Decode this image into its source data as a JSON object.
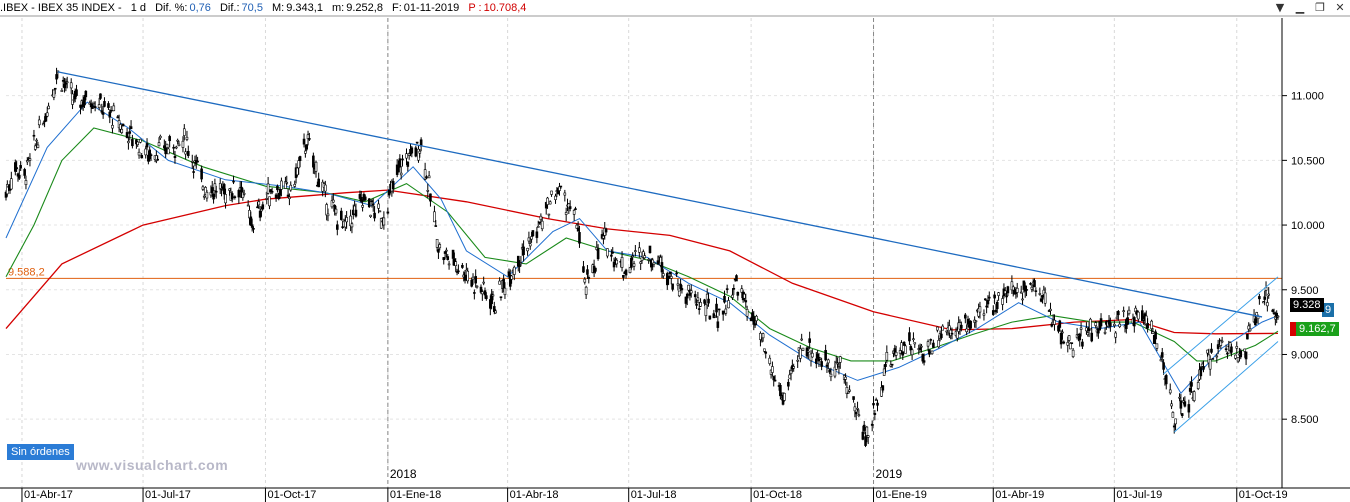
{
  "header": {
    "symbol": ".IBEX - IBEX 35 INDEX -",
    "period": "1 d",
    "dif_pct_label": "Dif. %:",
    "dif_pct_value": "0,76",
    "dif_label": "Dif.:",
    "dif_value": "70,5",
    "max_label": "M:",
    "max_value": "9.343,1",
    "min_label": "m:",
    "min_value": "9.252,8",
    "date_label": "F:",
    "date_value": "01-11-2019",
    "price_label": "P :",
    "price_value": "10.708,4"
  },
  "status_badge": "Sin órdenes",
  "watermark": "www.visualchart.com",
  "tags": {
    "last_price": "9.328",
    "ma_value": "9.162,7",
    "hidden_right": "9"
  },
  "colors": {
    "price": "#000000",
    "ma_fast": "#1f6fd0",
    "ma_mid": "#1a8a1a",
    "ma_slow": "#d40000",
    "resistance": "#e06010",
    "trend_line": "#1e6bc0",
    "channel": "#3aa0e8",
    "last_price_bg": "#000000",
    "ma_tag_bg": "#1aa01a"
  },
  "chart_data": {
    "type": "candlestick",
    "title": "IBEX 35 INDEX",
    "ylim": [
      8200,
      11600
    ],
    "y_ticks": [
      "11.000",
      "10.500",
      "10.000",
      "9.500",
      "9.000",
      "8.500"
    ],
    "x_ticks": [
      "01-Abr-17",
      "01-Jul-17",
      "01-Oct-17",
      "01-Ene-18",
      "01-Abr-18",
      "01-Jul-18",
      "01-Oct-18",
      "01-Ene-19",
      "01-Abr-19",
      "01-Jul-19",
      "01-Oct-19"
    ],
    "year_markers": [
      "2018",
      "2019"
    ],
    "horizontal_line": {
      "label": "9.588,2",
      "value": 9588.2
    },
    "price_path": [
      [
        "2017-03-20",
        10250
      ],
      [
        "2017-03-27",
        10450
      ],
      [
        "2017-04-03",
        10380
      ],
      [
        "2017-04-17",
        10800
      ],
      [
        "2017-04-28",
        11184
      ],
      [
        "2017-05-10",
        10960
      ],
      [
        "2017-05-24",
        10980
      ],
      [
        "2017-06-07",
        10850
      ],
      [
        "2017-06-21",
        10700
      ],
      [
        "2017-07-05",
        10550
      ],
      [
        "2017-07-19",
        10600
      ],
      [
        "2017-08-02",
        10650
      ],
      [
        "2017-08-16",
        10300
      ],
      [
        "2017-08-30",
        10250
      ],
      [
        "2017-09-13",
        10300
      ],
      [
        "2017-09-20",
        10000
      ],
      [
        "2017-10-06",
        10280
      ],
      [
        "2017-10-20",
        10250
      ],
      [
        "2017-11-01",
        10650
      ],
      [
        "2017-11-15",
        10200
      ],
      [
        "2017-11-30",
        9980
      ],
      [
        "2017-12-14",
        10200
      ],
      [
        "2017-12-28",
        10050
      ],
      [
        "2018-01-10",
        10450
      ],
      [
        "2018-01-26",
        10630
      ],
      [
        "2018-02-09",
        9800
      ],
      [
        "2018-02-23",
        9700
      ],
      [
        "2018-03-07",
        9560
      ],
      [
        "2018-03-23",
        9400
      ],
      [
        "2018-04-06",
        9700
      ],
      [
        "2018-04-20",
        9900
      ],
      [
        "2018-05-09",
        10280
      ],
      [
        "2018-05-24",
        10000
      ],
      [
        "2018-05-29",
        9500
      ],
      [
        "2018-06-12",
        9900
      ],
      [
        "2018-06-28",
        9650
      ],
      [
        "2018-07-12",
        9800
      ],
      [
        "2018-07-26",
        9700
      ],
      [
        "2018-08-09",
        9500
      ],
      [
        "2018-08-23",
        9400
      ],
      [
        "2018-09-06",
        9300
      ],
      [
        "2018-09-20",
        9550
      ],
      [
        "2018-10-05",
        9200
      ],
      [
        "2018-10-19",
        8800
      ],
      [
        "2018-10-26",
        8650
      ],
      [
        "2018-11-09",
        9100
      ],
      [
        "2018-11-23",
        8950
      ],
      [
        "2018-12-07",
        8900
      ],
      [
        "2018-12-27",
        8350
      ],
      [
        "2019-01-10",
        8900
      ],
      [
        "2019-01-25",
        9100
      ],
      [
        "2019-02-08",
        9000
      ],
      [
        "2019-02-22",
        9200
      ],
      [
        "2019-03-08",
        9200
      ],
      [
        "2019-03-22",
        9300
      ],
      [
        "2019-04-05",
        9450
      ],
      [
        "2019-04-19",
        9500
      ],
      [
        "2019-05-03",
        9550
      ],
      [
        "2019-05-17",
        9250
      ],
      [
        "2019-05-31",
        9050
      ],
      [
        "2019-06-14",
        9200
      ],
      [
        "2019-06-28",
        9200
      ],
      [
        "2019-07-12",
        9300
      ],
      [
        "2019-07-26",
        9300
      ],
      [
        "2019-08-07",
        8900
      ],
      [
        "2019-08-15",
        8500
      ],
      [
        "2019-08-29",
        8700
      ],
      [
        "2019-09-12",
        9000
      ],
      [
        "2019-09-26",
        9100
      ],
      [
        "2019-10-04",
        8950
      ],
      [
        "2019-10-18",
        9350
      ],
      [
        "2019-10-25",
        9450
      ],
      [
        "2019-11-01",
        9300
      ]
    ],
    "ma_slow_path": [
      [
        "2017-03-20",
        9200
      ],
      [
        "2017-05-01",
        9700
      ],
      [
        "2017-07-01",
        10000
      ],
      [
        "2017-09-01",
        10150
      ],
      [
        "2017-10-01",
        10200
      ],
      [
        "2017-12-01",
        10250
      ],
      [
        "2018-01-01",
        10270
      ],
      [
        "2018-03-01",
        10180
      ],
      [
        "2018-05-01",
        10050
      ],
      [
        "2018-06-15",
        9970
      ],
      [
        "2018-08-01",
        9920
      ],
      [
        "2018-09-15",
        9800
      ],
      [
        "2018-11-01",
        9550
      ],
      [
        "2019-01-01",
        9330
      ],
      [
        "2019-03-01",
        9190
      ],
      [
        "2019-04-15",
        9200
      ],
      [
        "2019-06-01",
        9250
      ],
      [
        "2019-07-15",
        9270
      ],
      [
        "2019-08-15",
        9170
      ],
      [
        "2019-09-15",
        9160
      ],
      [
        "2019-11-01",
        9163
      ]
    ],
    "ma_mid_path": [
      [
        "2017-03-20",
        9600
      ],
      [
        "2017-04-10",
        10000
      ],
      [
        "2017-05-01",
        10500
      ],
      [
        "2017-05-25",
        10750
      ],
      [
        "2017-07-01",
        10650
      ],
      [
        "2017-08-15",
        10450
      ],
      [
        "2017-10-01",
        10300
      ],
      [
        "2017-11-15",
        10250
      ],
      [
        "2017-12-15",
        10180
      ],
      [
        "2018-01-15",
        10320
      ],
      [
        "2018-02-15",
        10100
      ],
      [
        "2018-03-15",
        9750
      ],
      [
        "2018-04-15",
        9700
      ],
      [
        "2018-05-15",
        9900
      ],
      [
        "2018-06-15",
        9800
      ],
      [
        "2018-07-15",
        9730
      ],
      [
        "2018-08-15",
        9600
      ],
      [
        "2018-09-15",
        9450
      ],
      [
        "2018-10-15",
        9200
      ],
      [
        "2018-11-15",
        9050
      ],
      [
        "2018-12-15",
        8950
      ],
      [
        "2019-01-15",
        8950
      ],
      [
        "2019-02-15",
        9050
      ],
      [
        "2019-03-15",
        9150
      ],
      [
        "2019-04-15",
        9250
      ],
      [
        "2019-05-15",
        9300
      ],
      [
        "2019-06-15",
        9250
      ],
      [
        "2019-07-15",
        9250
      ],
      [
        "2019-08-15",
        9100
      ],
      [
        "2019-09-01",
        8950
      ],
      [
        "2019-09-15",
        8950
      ],
      [
        "2019-10-15",
        9070
      ],
      [
        "2019-11-01",
        9180
      ]
    ],
    "ma_fast_path": [
      [
        "2017-03-20",
        9900
      ],
      [
        "2017-04-20",
        10600
      ],
      [
        "2017-05-20",
        10950
      ],
      [
        "2017-06-20",
        10750
      ],
      [
        "2017-07-20",
        10500
      ],
      [
        "2017-09-01",
        10350
      ],
      [
        "2017-10-15",
        10300
      ],
      [
        "2017-11-15",
        10250
      ],
      [
        "2017-12-20",
        10150
      ],
      [
        "2018-01-20",
        10450
      ],
      [
        "2018-02-10",
        10200
      ],
      [
        "2018-03-01",
        9800
      ],
      [
        "2018-04-01",
        9600
      ],
      [
        "2018-05-05",
        9950
      ],
      [
        "2018-05-25",
        10050
      ],
      [
        "2018-06-15",
        9800
      ],
      [
        "2018-07-15",
        9750
      ],
      [
        "2018-08-15",
        9550
      ],
      [
        "2018-09-15",
        9400
      ],
      [
        "2018-10-15",
        9150
      ],
      [
        "2018-11-15",
        8950
      ],
      [
        "2018-12-20",
        8800
      ],
      [
        "2019-01-20",
        8900
      ],
      [
        "2019-02-20",
        9050
      ],
      [
        "2019-03-20",
        9200
      ],
      [
        "2019-04-20",
        9400
      ],
      [
        "2019-05-20",
        9250
      ],
      [
        "2019-06-20",
        9200
      ],
      [
        "2019-07-20",
        9250
      ],
      [
        "2019-08-20",
        8700
      ],
      [
        "2019-09-20",
        9050
      ],
      [
        "2019-10-20",
        9250
      ],
      [
        "2019-11-01",
        9300
      ]
    ],
    "trend_lines": [
      {
        "from": [
          "2017-04-28",
          11184
        ],
        "to": [
          "2019-10-20",
          9290
        ]
      },
      {
        "from": [
          "2019-08-15",
          8400
        ],
        "to": [
          "2019-11-01",
          9100
        ]
      },
      {
        "from": [
          "2019-08-07",
          8850
        ],
        "to": [
          "2019-11-01",
          9600
        ]
      }
    ]
  }
}
